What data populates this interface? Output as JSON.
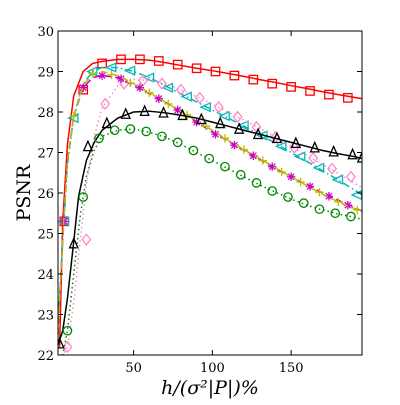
{
  "chart_data": {
    "type": "line",
    "title": "",
    "xlabel": "h/(σ²|P|)%",
    "ylabel": "PSNR",
    "xlim": [
      2,
      195
    ],
    "ylim": [
      22,
      30
    ],
    "grid": false,
    "x_ticks": [
      50,
      100,
      150
    ],
    "y_ticks": [
      22,
      23,
      24,
      25,
      26,
      27,
      28,
      29,
      30
    ],
    "series": [
      {
        "color": "#ff0000",
        "line_style": "solid",
        "marker": "square",
        "x": [
          3,
          5,
          8,
          12,
          18,
          24,
          30,
          40,
          50,
          60,
          70,
          80,
          90,
          100,
          110,
          120,
          130,
          140,
          150,
          160,
          170,
          180,
          190,
          195
        ],
        "y": [
          22.2,
          25.3,
          27.2,
          28.4,
          29.0,
          29.2,
          29.25,
          29.3,
          29.3,
          29.28,
          29.22,
          29.15,
          29.08,
          29.02,
          28.95,
          28.88,
          28.8,
          28.73,
          28.65,
          28.58,
          28.5,
          28.43,
          28.36,
          28.33
        ],
        "marker_x": [
          6,
          18,
          30,
          42,
          54,
          66,
          78,
          90,
          102,
          114,
          126,
          138,
          150,
          162,
          174,
          186
        ],
        "marker_y": [
          25.3,
          28.55,
          29.2,
          29.3,
          29.3,
          29.26,
          29.17,
          29.08,
          29.0,
          28.9,
          28.8,
          28.7,
          28.62,
          28.52,
          28.43,
          28.35
        ]
      },
      {
        "color": "#00b7b7",
        "line_style": "dashdot",
        "marker": "triangle-left",
        "x": [
          2,
          5,
          8,
          12,
          18,
          24,
          30,
          40,
          50,
          60,
          70,
          80,
          90,
          100,
          110,
          120,
          130,
          140,
          150,
          160,
          170,
          180,
          190,
          195
        ],
        "y": [
          22.8,
          24.8,
          26.7,
          27.9,
          28.7,
          29.0,
          29.1,
          29.1,
          29.0,
          28.85,
          28.65,
          28.45,
          28.25,
          28.05,
          27.85,
          27.65,
          27.45,
          27.23,
          27.0,
          26.78,
          26.55,
          26.32,
          26.08,
          25.95
        ],
        "marker_x": [
          6,
          12,
          24,
          36,
          48,
          60,
          72,
          84,
          96,
          108,
          120,
          132,
          144,
          156,
          168,
          180,
          192
        ],
        "marker_y": [
          25.3,
          27.85,
          29.0,
          29.1,
          29.02,
          28.85,
          28.6,
          28.38,
          28.12,
          27.9,
          27.67,
          27.42,
          27.15,
          26.9,
          26.62,
          26.33,
          25.95
        ]
      },
      {
        "color": "#ff88cc",
        "line_style": "dotted",
        "marker": "diamond",
        "x": [
          2,
          5,
          8,
          12,
          16,
          20,
          25,
          30,
          40,
          50,
          60,
          70,
          80,
          90,
          100,
          110,
          120,
          130,
          140,
          150,
          160,
          170,
          180,
          190,
          195
        ],
        "y": [
          21.9,
          22.0,
          22.2,
          23.3,
          24.8,
          26.2,
          27.4,
          28.1,
          28.65,
          28.8,
          28.78,
          28.7,
          28.55,
          28.38,
          28.2,
          28.0,
          27.8,
          27.6,
          27.38,
          27.15,
          26.92,
          26.7,
          26.48,
          26.25,
          26.12
        ],
        "marker_x": [
          8,
          20,
          32,
          44,
          56,
          68,
          80,
          92,
          104,
          116,
          128,
          140,
          152,
          164,
          176,
          188
        ],
        "marker_y": [
          22.2,
          24.85,
          28.2,
          28.7,
          28.78,
          28.7,
          28.55,
          28.35,
          28.12,
          27.88,
          27.63,
          27.38,
          27.12,
          26.86,
          26.6,
          26.4
        ]
      },
      {
        "color": "#cc00cc",
        "line_style": "dashed",
        "marker": "star",
        "x": [
          2,
          5,
          8,
          12,
          18,
          24,
          30,
          40,
          50,
          60,
          70,
          80,
          90,
          100,
          110,
          120,
          130,
          140,
          150,
          160,
          170,
          180,
          190,
          195
        ],
        "y": [
          22.5,
          24.9,
          26.8,
          27.9,
          28.6,
          28.85,
          28.9,
          28.85,
          28.65,
          28.45,
          28.25,
          28.0,
          27.75,
          27.5,
          27.28,
          27.05,
          26.83,
          26.6,
          26.4,
          26.2,
          26.0,
          25.82,
          25.65,
          25.55
        ],
        "marker_x": [
          6,
          18,
          30,
          42,
          54,
          66,
          78,
          90,
          102,
          114,
          126,
          138,
          150,
          162,
          174,
          186
        ],
        "marker_y": [
          25.3,
          28.6,
          28.9,
          28.82,
          28.6,
          28.33,
          28.05,
          27.75,
          27.45,
          27.18,
          26.92,
          26.65,
          26.4,
          26.16,
          25.92,
          25.7
        ]
      },
      {
        "color": "#bbbb00",
        "line_style": "dashed",
        "marker": "plus",
        "x": [
          2,
          5,
          8,
          12,
          18,
          24,
          30,
          40,
          50,
          60,
          70,
          80,
          90,
          100,
          110,
          120,
          130,
          140,
          150,
          160,
          170,
          180,
          190,
          195
        ],
        "y": [
          22.5,
          24.9,
          26.8,
          27.9,
          28.65,
          28.95,
          29.0,
          28.9,
          28.7,
          28.48,
          28.25,
          28.02,
          27.78,
          27.55,
          27.3,
          27.07,
          26.85,
          26.62,
          26.4,
          26.18,
          25.97,
          25.78,
          25.62,
          25.55
        ],
        "marker_x": [
          12,
          24,
          36,
          48,
          60,
          72,
          84,
          96,
          108,
          120,
          132,
          144,
          156,
          168,
          180,
          192
        ],
        "marker_y": [
          27.9,
          28.95,
          28.92,
          28.72,
          28.48,
          28.2,
          27.93,
          27.65,
          27.35,
          27.07,
          26.8,
          26.52,
          26.27,
          26.02,
          25.78,
          25.58
        ]
      },
      {
        "color": "#000000",
        "line_style": "solid",
        "marker": "triangle-up",
        "x": [
          2,
          5,
          8,
          12,
          15,
          20,
          25,
          30,
          40,
          50,
          60,
          70,
          80,
          90,
          100,
          110,
          120,
          130,
          140,
          150,
          160,
          170,
          180,
          190,
          195
        ],
        "y": [
          22.25,
          22.6,
          23.4,
          24.8,
          25.9,
          26.8,
          27.25,
          27.55,
          27.85,
          28.0,
          28.02,
          27.98,
          27.92,
          27.85,
          27.75,
          27.65,
          27.55,
          27.45,
          27.35,
          27.25,
          27.15,
          27.05,
          26.97,
          26.9,
          26.85
        ],
        "marker_x": [
          3,
          12,
          21,
          33,
          45,
          57,
          69,
          81,
          93,
          105,
          117,
          129,
          141,
          153,
          165,
          177,
          189,
          195
        ],
        "marker_y": [
          22.28,
          24.75,
          27.15,
          27.72,
          27.95,
          28.02,
          27.98,
          27.92,
          27.82,
          27.72,
          27.58,
          27.45,
          27.35,
          27.23,
          27.12,
          27.02,
          26.95,
          26.87
        ]
      },
      {
        "color": "#008800",
        "line_style": "dotted",
        "marker": "circle",
        "x": [
          2,
          5,
          8,
          12,
          16,
          20,
          25,
          30,
          40,
          50,
          60,
          70,
          80,
          90,
          100,
          110,
          120,
          130,
          140,
          150,
          160,
          170,
          180,
          190,
          195
        ],
        "y": [
          21.8,
          22.0,
          22.6,
          24.0,
          25.4,
          26.4,
          27.05,
          27.4,
          27.55,
          27.58,
          27.5,
          27.38,
          27.2,
          27.0,
          26.8,
          26.6,
          26.4,
          26.2,
          26.02,
          25.85,
          25.7,
          25.58,
          25.48,
          25.4,
          25.35
        ],
        "marker_x": [
          8,
          18,
          28,
          38,
          48,
          58,
          68,
          78,
          88,
          98,
          108,
          118,
          128,
          138,
          148,
          158,
          168,
          178,
          188
        ],
        "marker_y": [
          22.6,
          25.9,
          27.35,
          27.55,
          27.58,
          27.52,
          27.4,
          27.25,
          27.05,
          26.85,
          26.65,
          26.45,
          26.25,
          26.05,
          25.9,
          25.75,
          25.6,
          25.5,
          25.42
        ]
      }
    ]
  }
}
